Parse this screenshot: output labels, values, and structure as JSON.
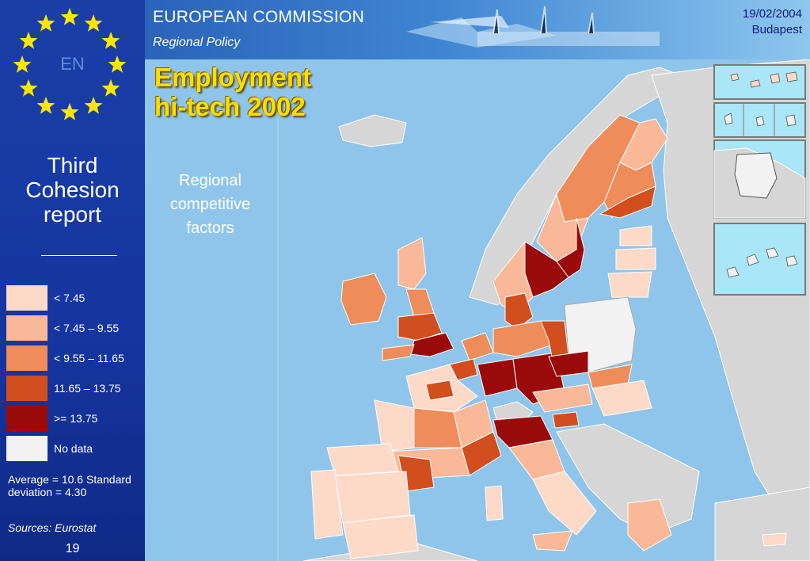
{
  "header": {
    "organization": "EUROPEAN COMMISSION",
    "department": "Regional Policy",
    "date": "19/02/2004",
    "location": "Budapest"
  },
  "sidebar": {
    "language_badge": "EN",
    "report_title": "Third Cohesion report",
    "legend": [
      {
        "label": "< 7.45",
        "color": "#fdd9c8"
      },
      {
        "label": "< 7.45 – 9.55",
        "color": "#f9b898"
      },
      {
        "label": "< 9.55 – 11.65",
        "color": "#ee8c5a"
      },
      {
        "label": "11.65 – 13.75",
        "color": "#d24e1e"
      },
      {
        "label": ">= 13.75",
        "color": "#9b0a0a"
      },
      {
        "label": "No data",
        "color": "#f2f2f2"
      }
    ],
    "stats": "Average = 10.6 Standard deviation = 4.30",
    "sources": "Sources: Eurostat",
    "page_number": "19"
  },
  "map": {
    "title_line1": "Employment",
    "title_line2": "hi-tech 2002",
    "subtitle": "Regional competitive factors",
    "sea_color": "#8fc5ea",
    "non_eu_color": "#d6d6d6",
    "region_stroke": "#ffffff"
  }
}
